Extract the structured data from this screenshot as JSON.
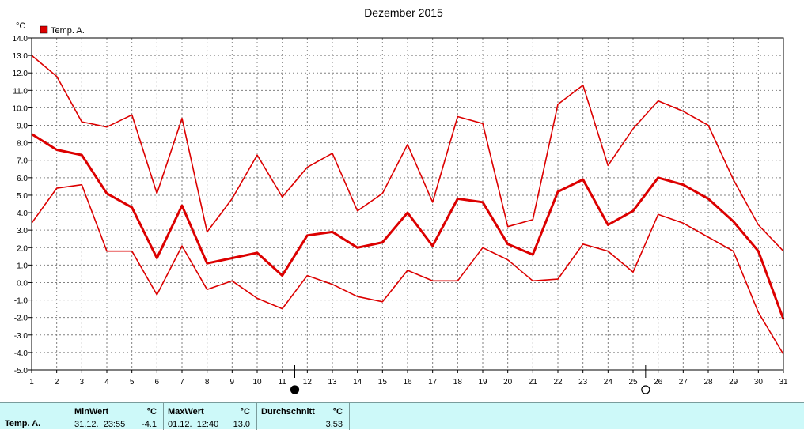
{
  "chart_data": {
    "type": "line",
    "title": "Dezember 2015",
    "ylabel": "°C",
    "xlabel": "",
    "ylim": [
      -5.0,
      14.0
    ],
    "xlim": [
      1,
      31
    ],
    "y_ticks": [
      "14.0",
      "13.0",
      "12.0",
      "11.0",
      "10.0",
      "9.0",
      "8.0",
      "7.0",
      "6.0",
      "5.0",
      "4.0",
      "3.0",
      "2.0",
      "1.0",
      "0.0",
      "-1.0",
      "-2.0",
      "-3.0",
      "-4.0",
      "-5.0"
    ],
    "x": [
      1,
      2,
      3,
      4,
      5,
      6,
      7,
      8,
      9,
      10,
      11,
      12,
      13,
      14,
      15,
      16,
      17,
      18,
      19,
      20,
      21,
      22,
      23,
      24,
      25,
      26,
      27,
      28,
      29,
      30,
      31
    ],
    "grid": true,
    "legend": {
      "position": "top-left",
      "entries": [
        "Temp. A."
      ]
    },
    "moon_phases": [
      {
        "day": 11.5,
        "phase": "new-moon"
      },
      {
        "day": 25.5,
        "phase": "full-moon"
      }
    ],
    "series": [
      {
        "name": "Temp. A.",
        "role": "mean",
        "values": [
          8.5,
          7.6,
          7.3,
          5.1,
          4.3,
          1.4,
          4.4,
          1.1,
          1.4,
          1.7,
          0.4,
          2.7,
          2.9,
          2.0,
          2.3,
          4.0,
          2.1,
          4.8,
          4.6,
          2.2,
          1.6,
          5.2,
          5.9,
          3.3,
          4.1,
          6.0,
          5.6,
          4.8,
          3.5,
          1.8,
          -2.1
        ]
      },
      {
        "role": "max",
        "values": [
          13.0,
          11.8,
          9.2,
          8.9,
          9.6,
          5.1,
          9.4,
          2.9,
          4.8,
          7.3,
          4.9,
          6.6,
          7.4,
          4.1,
          5.1,
          7.9,
          4.6,
          9.5,
          9.1,
          3.2,
          3.6,
          10.2,
          11.3,
          6.7,
          8.8,
          10.4,
          9.8,
          9.0,
          5.9,
          3.3,
          1.8
        ]
      },
      {
        "role": "min",
        "values": [
          3.4,
          5.4,
          5.6,
          1.8,
          1.8,
          -0.7,
          2.1,
          -0.4,
          0.1,
          -0.9,
          -1.5,
          0.4,
          -0.1,
          -0.8,
          -1.1,
          0.7,
          0.1,
          0.1,
          2.0,
          1.3,
          0.1,
          0.2,
          2.2,
          1.8,
          0.6,
          3.9,
          3.4,
          2.6,
          1.8,
          -1.7,
          -4.1
        ]
      }
    ],
    "colors": {
      "line": "#dc0000",
      "grid": "#808080",
      "legend_swatch": "#dc0000"
    }
  },
  "stats": {
    "row_label": "Temp. A.",
    "min": {
      "header": "MinWert",
      "unit": "°C",
      "timestamp": "31.12.  23:55",
      "value": "-4.1"
    },
    "max": {
      "header": "MaxWert",
      "unit": "°C",
      "timestamp": "01.12.  12:40",
      "value": "13.0"
    },
    "avg": {
      "header": "Durchschnitt",
      "unit": "°C",
      "value": "3.53"
    }
  }
}
